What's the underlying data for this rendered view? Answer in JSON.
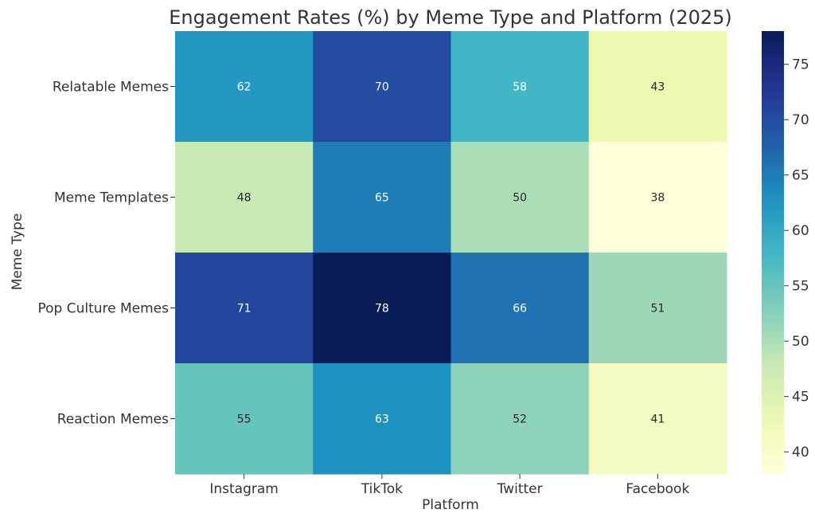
{
  "chart_data": {
    "type": "heatmap",
    "title": "Engagement Rates (%) by Meme Type and Platform (2025)",
    "xlabel": "Platform",
    "ylabel": "Meme Type",
    "x_categories": [
      "Instagram",
      "TikTok",
      "Twitter",
      "Facebook"
    ],
    "y_categories": [
      "Relatable Memes",
      "Meme Templates",
      "Pop Culture Memes",
      "Reaction Memes"
    ],
    "values": [
      [
        62,
        70,
        58,
        43
      ],
      [
        48,
        65,
        50,
        38
      ],
      [
        71,
        78,
        66,
        51
      ],
      [
        55,
        63,
        52,
        41
      ]
    ],
    "colorbar": {
      "colormap": "YlGnBu",
      "range": [
        38,
        78
      ],
      "ticks": [
        40,
        45,
        50,
        55,
        60,
        65,
        70,
        75
      ]
    },
    "annotations": true
  }
}
